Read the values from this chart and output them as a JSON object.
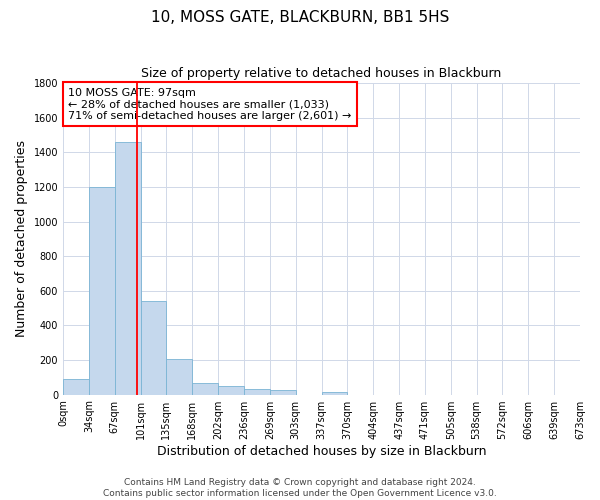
{
  "title": "10, MOSS GATE, BLACKBURN, BB1 5HS",
  "subtitle": "Size of property relative to detached houses in Blackburn",
  "xlabel": "Distribution of detached houses by size in Blackburn",
  "ylabel": "Number of detached properties",
  "footer_line1": "Contains HM Land Registry data © Crown copyright and database right 2024.",
  "footer_line2": "Contains public sector information licensed under the Open Government Licence v3.0.",
  "bin_labels": [
    "0sqm",
    "34sqm",
    "67sqm",
    "101sqm",
    "135sqm",
    "168sqm",
    "202sqm",
    "236sqm",
    "269sqm",
    "303sqm",
    "337sqm",
    "370sqm",
    "404sqm",
    "437sqm",
    "471sqm",
    "505sqm",
    "538sqm",
    "572sqm",
    "606sqm",
    "639sqm",
    "673sqm"
  ],
  "bar_values": [
    90,
    1200,
    1460,
    540,
    205,
    65,
    47,
    35,
    25,
    0,
    15,
    0,
    0,
    0,
    0,
    0,
    0,
    0,
    0,
    0
  ],
  "bar_color": "#c5d8ed",
  "bar_edge_color": "#7ab4d4",
  "ylim": [
    0,
    1800
  ],
  "yticks": [
    0,
    200,
    400,
    600,
    800,
    1000,
    1200,
    1400,
    1600,
    1800
  ],
  "property_line_bin": 2.88,
  "property_line_color": "red",
  "annotation_title": "10 MOSS GATE: 97sqm",
  "annotation_line1": "← 28% of detached houses are smaller (1,033)",
  "annotation_line2": "71% of semi-detached houses are larger (2,601) →",
  "annotation_box_color": "white",
  "annotation_box_edge_color": "red",
  "bg_color": "white",
  "grid_color": "#d0d8e8",
  "title_fontsize": 11,
  "subtitle_fontsize": 9,
  "axis_label_fontsize": 9,
  "tick_fontsize": 7,
  "annotation_fontsize": 8,
  "footer_fontsize": 6.5
}
